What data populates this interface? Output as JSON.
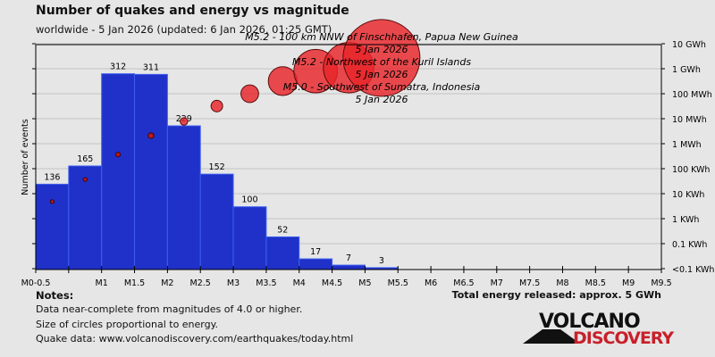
{
  "title": "Number of quakes and energy vs magnitude",
  "subtitle": "worldwide -  5 Jan 2026 (updated: 6 Jan 2026, 01:25 GMT)",
  "notes": {
    "heading": "Notes:",
    "lines": [
      "Data near-complete from magnitudes of 4.0 or higher.",
      "Size of circles proportional to energy.",
      "Quake data: www.volcanodiscovery.com/earthquakes/today.html"
    ]
  },
  "total_energy": "Total energy released: approx. 5 GWh",
  "logo": {
    "line1": "VOLCANO",
    "line2": "DISCOVERY",
    "color1": "#111111",
    "color2": "#c8202a"
  },
  "chart_data": {
    "type": "bar",
    "ylabel": "Number of events",
    "x_tick_labels": [
      "M0-0.5",
      "",
      "M1",
      "M1.5",
      "M2",
      "M2.5",
      "M3",
      "M3.5",
      "M4",
      "M4.5",
      "M5",
      "M5.5",
      "M6",
      "M6.5",
      "M7",
      "M7.5",
      "M8",
      "M8.5",
      "M9",
      "M9.5"
    ],
    "bins": [
      [
        0,
        0.5
      ],
      [
        0.5,
        1
      ],
      [
        1,
        1.5
      ],
      [
        1.5,
        2
      ],
      [
        2,
        2.5
      ],
      [
        2.5,
        3
      ],
      [
        3,
        3.5
      ],
      [
        3.5,
        4
      ],
      [
        4,
        4.5
      ],
      [
        4.5,
        5
      ],
      [
        5,
        5.5
      ]
    ],
    "counts": [
      136,
      165,
      312,
      311,
      229,
      152,
      100,
      52,
      17,
      7,
      3
    ],
    "xlim": [
      0,
      9.5
    ],
    "ylim": [
      0,
      365
    ],
    "bar_color": "#1f31c8",
    "energy_axis": {
      "scale": "log",
      "tick_labels": [
        "<0.1 KWh",
        "0.1 KWh",
        "1 KWh",
        "10 KWh",
        "100 KWh",
        "1 MWh",
        "10 MWh",
        "100 MWh",
        "1 GWh",
        "10 GWh"
      ],
      "unit": "KWh"
    },
    "energy_series": {
      "magnitudes": [
        0.25,
        0.75,
        1.25,
        1.75,
        2.25,
        2.75,
        3.25,
        3.75,
        4.25,
        4.75,
        5.25
      ],
      "energy_kwh": [
        4.8,
        37,
        370,
        2100,
        7800,
        32000,
        100000,
        320000,
        800000,
        1100000,
        2700000
      ],
      "color": "#e8242a"
    },
    "annotations": [
      {
        "text": "M5.2 - 100 km NNW of Finschhafen, Papua New Guinea",
        "date": "5 Jan 2026"
      },
      {
        "text": "M5.2 - Northwest of the Kuril Islands",
        "date": "5 Jan 2026"
      },
      {
        "text": "M5.0 - Southwest of Sumatra, Indonesia",
        "date": "5 Jan 2026"
      }
    ],
    "grid": true
  }
}
